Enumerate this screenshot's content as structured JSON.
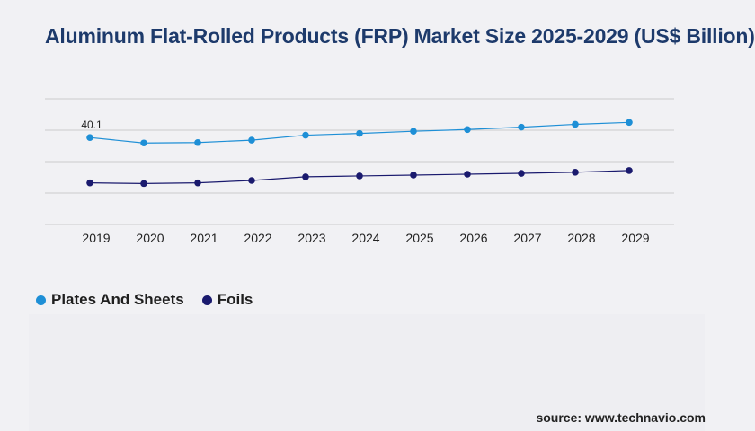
{
  "title": "Aluminum Flat-Rolled Products (FRP) Market Size 2025-2029 (US$ Billion)",
  "source": "source: www.technavio.com",
  "colors": {
    "plates": "#1e8fd6",
    "foils": "#1a1a6e",
    "grid": "#cccccc",
    "title": "#1d3a6b"
  },
  "chart_data": {
    "type": "line",
    "categories": [
      "2019",
      "2020",
      "2021",
      "2022",
      "2023",
      "2024",
      "2025",
      "2026",
      "2027",
      "2028",
      "2029"
    ],
    "series": [
      {
        "name": "Plates And Sheets",
        "color": "#1e8fd6",
        "values": [
          40.1,
          37.6,
          37.8,
          38.9,
          41.2,
          42.0,
          43.0,
          43.8,
          44.9,
          46.2,
          47.1
        ],
        "data_labels": {
          "0": "40.1"
        }
      },
      {
        "name": "Foils",
        "color": "#1a1a6e",
        "values": [
          19.2,
          18.9,
          19.2,
          20.3,
          22.0,
          22.4,
          22.8,
          23.2,
          23.6,
          24.1,
          24.9
        ]
      }
    ],
    "ylim": [
      0,
      58
    ],
    "grid": true,
    "legend_position": "bottom-left"
  }
}
